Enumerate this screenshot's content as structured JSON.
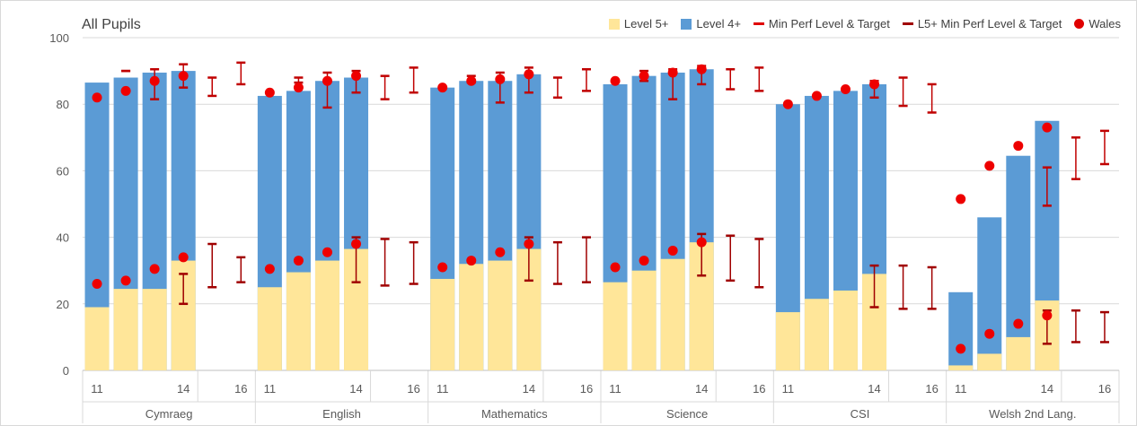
{
  "chart_data": {
    "type": "bar",
    "title": "All Pupils",
    "ylim": [
      0,
      100
    ],
    "y_ticks": [
      "0",
      "20",
      "40",
      "60",
      "80",
      "100"
    ],
    "grid": true,
    "legend_position": "top-right",
    "x_tick_labels": [
      "11",
      "",
      "",
      "14",
      "",
      "16"
    ],
    "legend": [
      {
        "key": "level5",
        "label": "Level 5+",
        "kind": "box",
        "color": "#ffe699"
      },
      {
        "key": "level4",
        "label": "Level 4+",
        "kind": "box",
        "color": "#5b9bd5"
      },
      {
        "key": "minperf",
        "label": "Min Perf Level & Target",
        "kind": "line",
        "color": "#e00000"
      },
      {
        "key": "l5minperf",
        "label": "L5+ Min Perf Level & Target",
        "kind": "line",
        "color": "#a00000"
      },
      {
        "key": "wales",
        "label": "Wales",
        "kind": "dot",
        "color": "#e00000"
      }
    ],
    "colors": {
      "level5": "#ffe699",
      "level4": "#5b9bd5",
      "minperf": "#c00000",
      "l5minperf": "#a00000",
      "wales": "#ee0000"
    },
    "groups": [
      {
        "name": "Cymraeg",
        "level4": [
          86.5,
          88,
          89.5,
          90
        ],
        "level5": [
          19,
          24.5,
          24.5,
          33
        ],
        "wales_l4": [
          82,
          84,
          87,
          88.5
        ],
        "wales_l5": [
          26,
          27,
          30.5,
          34
        ],
        "minperf_l4": [
          [
            90,
            90
          ],
          [
            81.5,
            90.5
          ],
          [
            85,
            92
          ],
          [
            82.5,
            88
          ],
          [
            86,
            92.5
          ]
        ],
        "minperf_l5": [
          null,
          null,
          null,
          [
            20,
            29
          ],
          [
            25,
            38
          ],
          [
            26.5,
            34
          ]
        ]
      },
      {
        "name": "English",
        "level4": [
          82.5,
          84,
          87,
          88
        ],
        "level5": [
          25,
          29.5,
          33,
          36.5
        ],
        "wales_l4": [
          83.5,
          85,
          87,
          88.5
        ],
        "wales_l5": [
          30.5,
          33,
          35.5,
          38
        ],
        "minperf_l4": [
          [
            86.5,
            88
          ],
          [
            79,
            89.5
          ],
          [
            83.5,
            90
          ],
          [
            81.5,
            88.5
          ],
          [
            83.5,
            91
          ]
        ],
        "minperf_l5": [
          null,
          null,
          null,
          [
            26.5,
            40
          ],
          [
            25.5,
            39.5
          ],
          [
            26,
            38.5
          ]
        ]
      },
      {
        "name": "Mathematics",
        "level4": [
          85,
          87,
          87,
          89
        ],
        "level5": [
          27.5,
          32,
          33,
          36.5
        ],
        "wales_l4": [
          85,
          87,
          87.5,
          89
        ],
        "wales_l5": [
          31,
          33,
          35.5,
          38
        ],
        "minperf_l4": [
          [
            86.5,
            88.5
          ],
          [
            80.5,
            89.5
          ],
          [
            83.5,
            91
          ],
          [
            82,
            88
          ],
          [
            84,
            90.5
          ]
        ],
        "minperf_l5": [
          null,
          null,
          null,
          [
            27,
            40
          ],
          [
            26,
            38.5
          ],
          [
            26.5,
            40
          ]
        ]
      },
      {
        "name": "Science",
        "level4": [
          86,
          88.5,
          89.5,
          90.5
        ],
        "level5": [
          26.5,
          30,
          33.5,
          38.5
        ],
        "wales_l4": [
          87,
          88.5,
          89.5,
          90.5
        ],
        "wales_l5": [
          31,
          33,
          36,
          38.5
        ],
        "minperf_l4": [
          [
            87,
            90
          ],
          [
            81.5,
            90.5
          ],
          [
            86,
            91.5
          ],
          [
            84.5,
            90.5
          ],
          [
            84,
            91
          ]
        ],
        "minperf_l5": [
          null,
          null,
          null,
          [
            28.5,
            41
          ],
          [
            27,
            40.5
          ],
          [
            25,
            39.5
          ]
        ]
      },
      {
        "name": "CSI",
        "level4": [
          80,
          82.5,
          84,
          86
        ],
        "level5": [
          17.5,
          21.5,
          24,
          29
        ],
        "wales_l4": [
          80,
          82.5,
          84.5,
          86
        ],
        "wales_l5": [
          null,
          null,
          null,
          null
        ],
        "minperf_l4": [
          [
            null,
            null
          ],
          [
            null,
            null
          ],
          [
            82,
            87
          ],
          [
            79.5,
            88
          ],
          [
            77.5,
            86
          ],
          [
            79,
            87.5
          ]
        ],
        "minperf_l5": [
          null,
          null,
          null,
          [
            19,
            31.5
          ],
          [
            18.5,
            31.5
          ],
          [
            18.5,
            31
          ]
        ]
      },
      {
        "name": "Welsh 2nd Lang.",
        "level4": [
          23.5,
          46,
          64.5,
          75
        ],
        "level5": [
          1.5,
          5,
          10,
          21
        ],
        "wales_l4": [
          51.5,
          61.5,
          67.5,
          73
        ],
        "wales_l5": [
          6.5,
          11,
          14,
          16.5
        ],
        "minperf_l4": [
          [
            null,
            null
          ],
          [
            null,
            null
          ],
          [
            49.5,
            61
          ],
          [
            57.5,
            70
          ],
          [
            62,
            72
          ],
          [
            66,
            77.5
          ]
        ],
        "minperf_l5": [
          null,
          null,
          null,
          [
            8,
            18
          ],
          [
            8.5,
            18
          ],
          [
            8.5,
            17.5
          ]
        ]
      }
    ]
  }
}
